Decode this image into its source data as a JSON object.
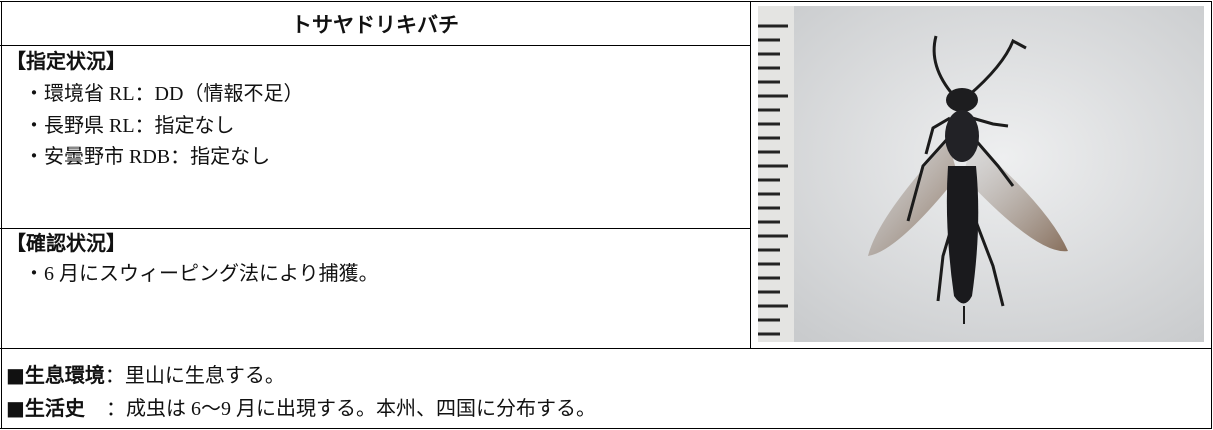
{
  "title": "トサヤドリキバチ",
  "designation": {
    "heading": "【指定状況】",
    "items": [
      "・環境省 RL：DD（情報不足）",
      "・長野県 RL：指定なし",
      "・安曇野市 RDB：指定なし"
    ]
  },
  "confirmation": {
    "heading": "【確認状況】",
    "items": [
      "・6 月にスウィーピング法により捕獲。"
    ]
  },
  "habitat": {
    "label": "■生息環境",
    "text": "：里山に生息する。"
  },
  "life_history": {
    "label": "■生活史",
    "text": "：成虫は 6〜9 月に出現する。本州、四国に分布する。"
  }
}
